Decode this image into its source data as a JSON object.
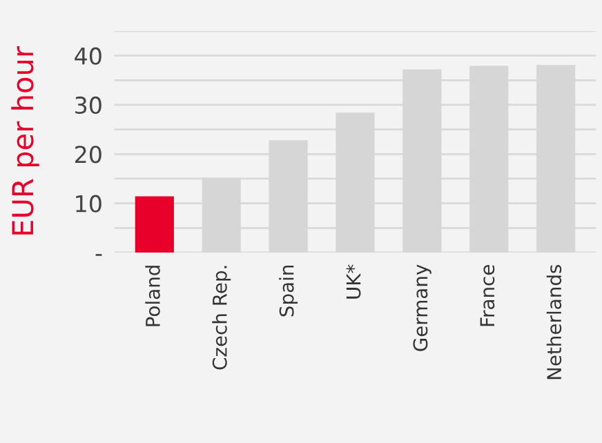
{
  "chart_data": {
    "type": "bar",
    "ylabel": "EUR per hour",
    "categories": [
      "Poland",
      "Czech Rep.",
      "Spain",
      "UK*",
      "Germany",
      "France",
      "Netherlands"
    ],
    "values": [
      11.4,
      15.2,
      22.8,
      28.4,
      37.2,
      37.9,
      38.1
    ],
    "colors": [
      "#e8002a",
      "#d6d6d6",
      "#d6d6d6",
      "#d6d6d6",
      "#d6d6d6",
      "#d6d6d6",
      "#d6d6d6"
    ],
    "ylim": [
      0,
      45
    ],
    "yticks": [
      {
        "value": 0,
        "label": "-"
      },
      {
        "value": 5,
        "label": null
      },
      10,
      {
        "value": 15,
        "label": null
      },
      20,
      {
        "value": 25,
        "label": null
      },
      30,
      {
        "value": 35,
        "label": null
      },
      40,
      {
        "value": 45,
        "label": null
      }
    ],
    "grid": "y",
    "legend": false
  }
}
